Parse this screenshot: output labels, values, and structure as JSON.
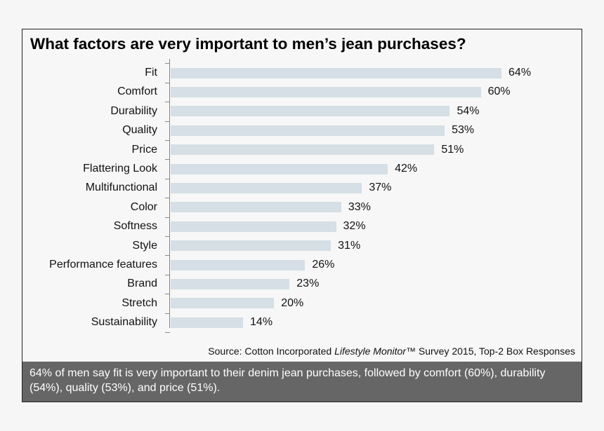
{
  "chart_data": {
    "type": "bar",
    "orientation": "horizontal",
    "title": "What factors are very important to men’s jean purchases?",
    "categories": [
      "Fit",
      "Comfort",
      "Durability",
      "Quality",
      "Price",
      "Flattering Look",
      "Multifunctional",
      "Color",
      "Softness",
      "Style",
      "Performance features",
      "Brand",
      "Stretch",
      "Sustainability"
    ],
    "values": [
      64,
      60,
      54,
      53,
      51,
      42,
      37,
      33,
      32,
      31,
      26,
      23,
      20,
      14
    ],
    "value_labels": [
      "64%",
      "60%",
      "54%",
      "53%",
      "51%",
      "42%",
      "37%",
      "33%",
      "32%",
      "31%",
      "26%",
      "23%",
      "20%",
      "14%"
    ],
    "xlim": [
      0,
      100
    ],
    "grid": false,
    "bar_color": "#d5dfe5",
    "source": {
      "prefix": "Source: Cotton Incorporated ",
      "italic": "Lifestyle Monitor",
      "suffix": "™ Survey 2015, Top-2 Box Responses"
    }
  },
  "footer": {
    "text": "64% of men say fit is very important to their denim jean purchases, followed by comfort (60%), durability (54%), quality (53%), and price (51%).",
    "background": "#666666"
  }
}
